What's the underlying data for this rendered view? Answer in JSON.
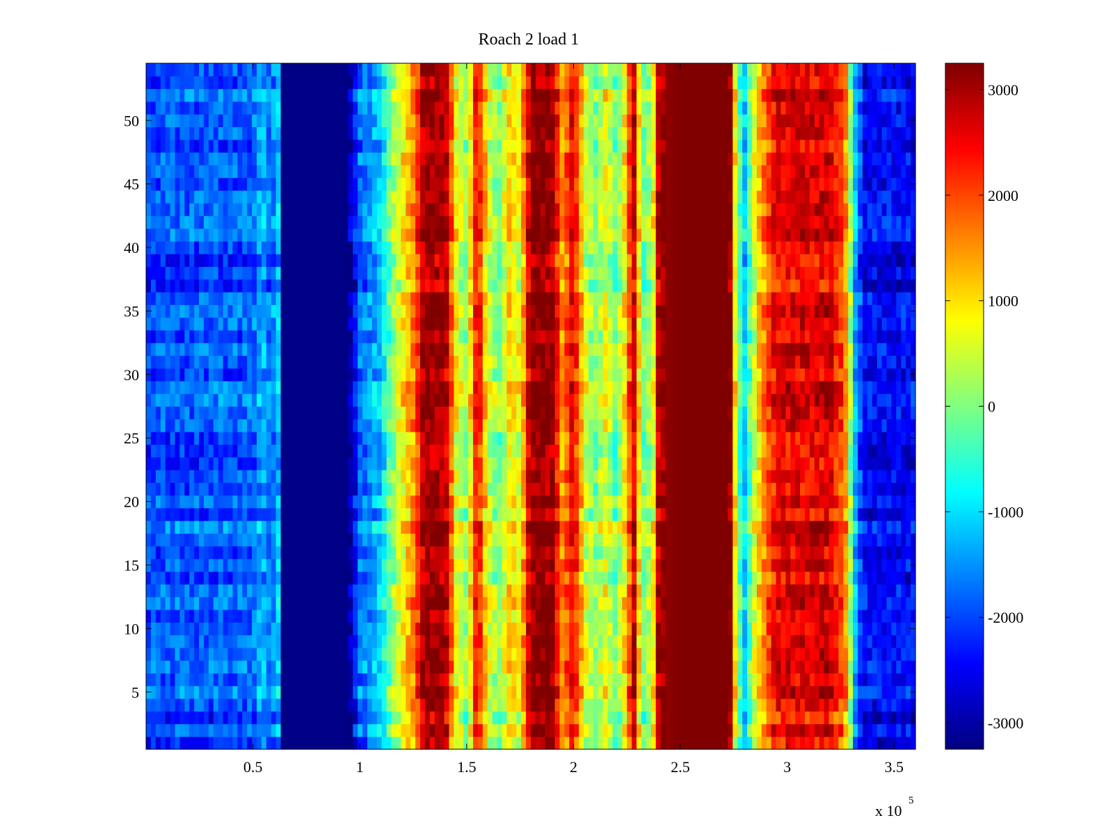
{
  "chart_data": {
    "type": "heatmap",
    "title": "Roach 2 load 1",
    "xlabel": "",
    "ylabel": "",
    "x_multiplier_label": "x 10",
    "x_multiplier_exp": "5",
    "xlim": [
      0,
      3.6
    ],
    "ylim": [
      0.5,
      54.5
    ],
    "x_ticks": [
      0.5,
      1,
      1.5,
      2,
      2.5,
      3,
      3.5
    ],
    "x_tick_labels": [
      "0.5",
      "1",
      "1.5",
      "2",
      "2.5",
      "3",
      "3.5"
    ],
    "y_ticks": [
      5,
      10,
      15,
      20,
      25,
      30,
      35,
      40,
      45,
      50
    ],
    "y_tick_labels": [
      "5",
      "10",
      "15",
      "20",
      "25",
      "30",
      "35",
      "40",
      "45",
      "50"
    ],
    "colorbar": {
      "colormap": "jet",
      "clim": [
        -3250,
        3250
      ],
      "ticks": [
        -3000,
        -2000,
        -1000,
        0,
        1000,
        2000,
        3000
      ],
      "tick_labels": [
        "-3000",
        "-2000",
        "-1000",
        "0",
        "1000",
        "2000",
        "3000"
      ]
    },
    "rows": 54,
    "column_profile": [
      {
        "x": 0.0,
        "value": -2000
      },
      {
        "x": 0.5,
        "value": -1900
      },
      {
        "x": 0.54,
        "value": -1300
      },
      {
        "x": 0.58,
        "value": -1800
      },
      {
        "x": 0.62,
        "value": -1300
      },
      {
        "x": 0.64,
        "value": -3200
      },
      {
        "x": 0.95,
        "value": -3200
      },
      {
        "x": 1.0,
        "value": -1800
      },
      {
        "x": 1.1,
        "value": -1200
      },
      {
        "x": 1.15,
        "value": 0
      },
      {
        "x": 1.2,
        "value": 800
      },
      {
        "x": 1.25,
        "value": 1500
      },
      {
        "x": 1.3,
        "value": 3000
      },
      {
        "x": 1.4,
        "value": 3000
      },
      {
        "x": 1.45,
        "value": 800
      },
      {
        "x": 1.5,
        "value": 0
      },
      {
        "x": 1.55,
        "value": 2600
      },
      {
        "x": 1.6,
        "value": 600
      },
      {
        "x": 1.65,
        "value": -100
      },
      {
        "x": 1.7,
        "value": 1000
      },
      {
        "x": 1.75,
        "value": 600
      },
      {
        "x": 1.8,
        "value": 3200
      },
      {
        "x": 1.9,
        "value": 3100
      },
      {
        "x": 1.95,
        "value": 1400
      },
      {
        "x": 2.0,
        "value": 2600
      },
      {
        "x": 2.05,
        "value": 700
      },
      {
        "x": 2.1,
        "value": -100
      },
      {
        "x": 2.15,
        "value": 700
      },
      {
        "x": 2.2,
        "value": -300
      },
      {
        "x": 2.25,
        "value": 1200
      },
      {
        "x": 2.28,
        "value": 3000
      },
      {
        "x": 2.32,
        "value": -200
      },
      {
        "x": 2.37,
        "value": 400
      },
      {
        "x": 2.4,
        "value": 3100
      },
      {
        "x": 2.5,
        "value": 3250
      },
      {
        "x": 2.74,
        "value": 3250
      },
      {
        "x": 2.76,
        "value": 200
      },
      {
        "x": 2.8,
        "value": -1200
      },
      {
        "x": 2.84,
        "value": 300
      },
      {
        "x": 2.88,
        "value": 1400
      },
      {
        "x": 2.95,
        "value": 2500
      },
      {
        "x": 3.2,
        "value": 2600
      },
      {
        "x": 3.27,
        "value": 1700
      },
      {
        "x": 3.32,
        "value": -1400
      },
      {
        "x": 3.36,
        "value": -2500
      },
      {
        "x": 3.6,
        "value": -2500
      }
    ]
  }
}
